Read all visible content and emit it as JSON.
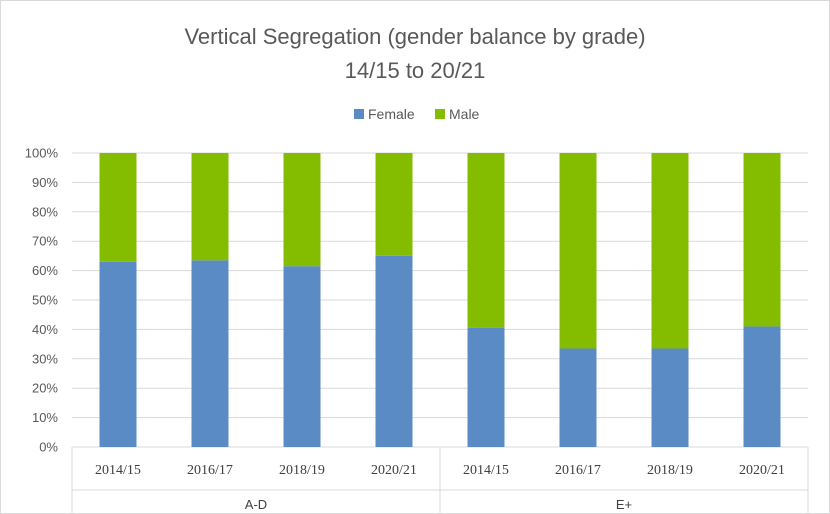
{
  "chart_data": {
    "type": "bar",
    "stacked": true,
    "title": "Vertical Segregation (gender balance by grade)",
    "subtitle": "14/15 to 20/21",
    "legend_position": "top",
    "y_ticks": [
      "0%",
      "10%",
      "20%",
      "30%",
      "40%",
      "50%",
      "60%",
      "70%",
      "80%",
      "90%",
      "100%"
    ],
    "ylim": [
      0,
      100
    ],
    "grid": true,
    "categories": [
      "2014/15",
      "2016/17",
      "2018/19",
      "2020/21",
      "2014/15",
      "2016/17",
      "2018/19",
      "2020/21"
    ],
    "groups": [
      {
        "label": "A-D",
        "count": 4
      },
      {
        "label": "E+",
        "count": 4
      }
    ],
    "series": [
      {
        "name": "Female",
        "color": "#5b8bc4",
        "values": [
          63,
          63.5,
          61.5,
          65,
          40.5,
          33.5,
          33.5,
          41
        ]
      },
      {
        "name": "Male",
        "color": "#84bd00",
        "values": [
          37,
          36.5,
          38.5,
          35,
          59.5,
          66.5,
          66.5,
          59
        ]
      }
    ]
  }
}
